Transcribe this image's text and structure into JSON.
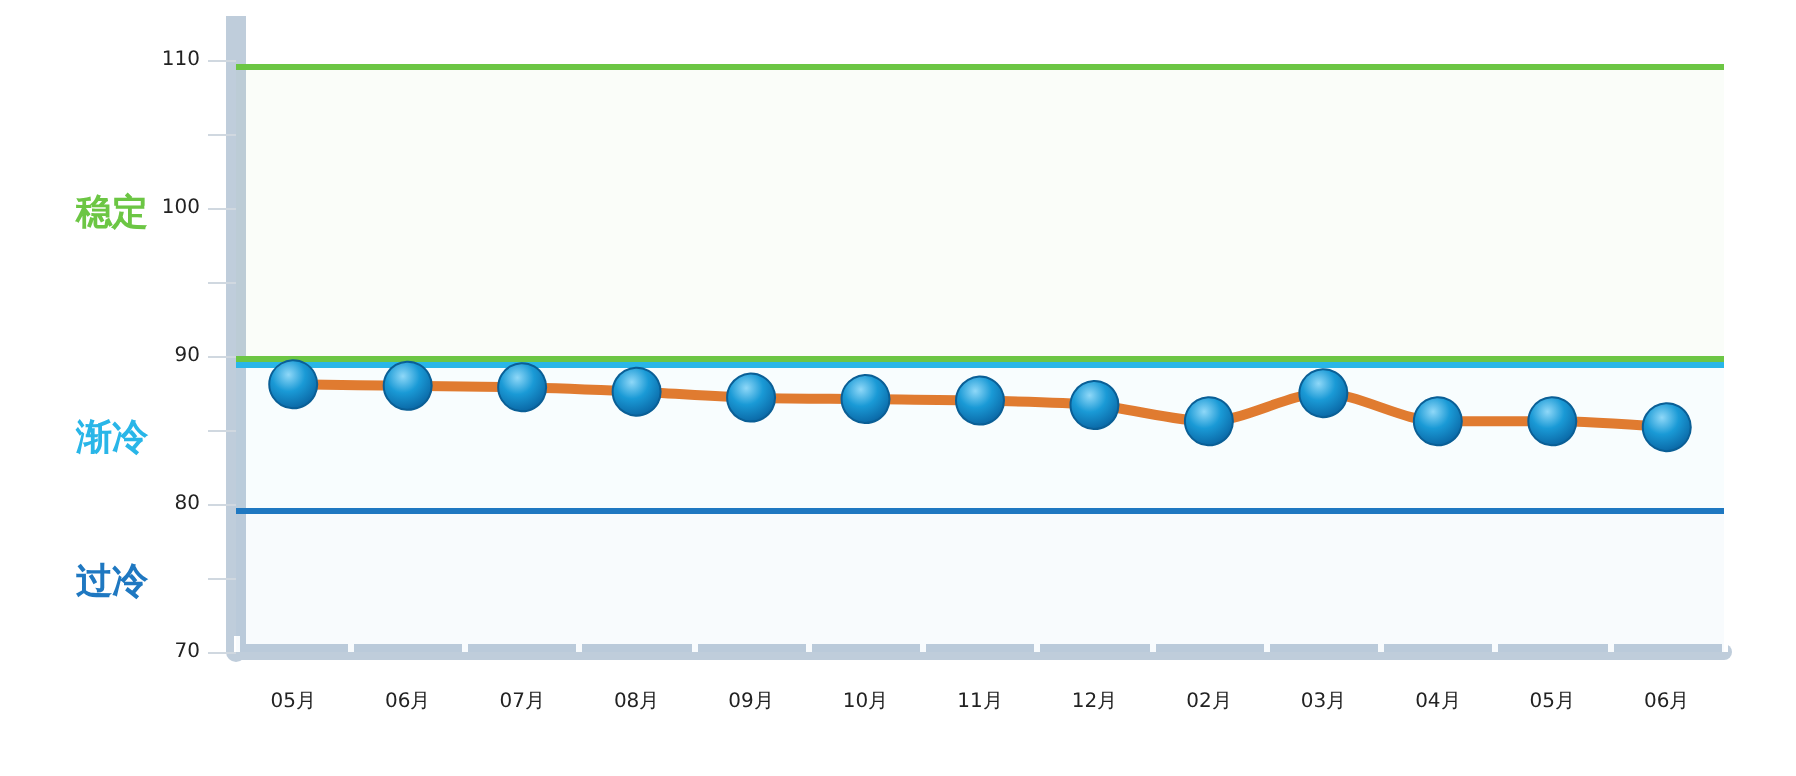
{
  "chart_data": {
    "type": "line",
    "categories": [
      "05月",
      "06月",
      "07月",
      "08月",
      "09月",
      "10月",
      "11月",
      "12月",
      "02月",
      "03月",
      "04月",
      "05月",
      "06月"
    ],
    "series": [
      {
        "color": "#e07b30",
        "values": [
          88.1,
          88.0,
          87.9,
          87.6,
          87.2,
          87.1,
          87.0,
          86.7,
          85.6,
          87.5,
          85.6,
          85.6,
          85.2
        ]
      }
    ],
    "ylim": [
      70,
      113
    ],
    "yticks": [
      70,
      {
        "value": 75,
        "label": null
      },
      80,
      {
        "value": 85,
        "label": null
      },
      90,
      {
        "value": 95,
        "label": null
      },
      100,
      {
        "value": 105,
        "label": null
      },
      110
    ],
    "bands": [
      {
        "axis": "y",
        "from": 89.8,
        "to": 109.6,
        "label": "稳定",
        "color": "#6cc644"
      },
      {
        "axis": "y",
        "from": 79.5,
        "to": 89.5,
        "label": "渐冷",
        "color": "#29b6e8"
      },
      {
        "axis": "y",
        "from": 70,
        "to": 79.5,
        "label": "过冷",
        "color": "#1f78c1"
      }
    ],
    "ref_lines": [
      {
        "axis": "y",
        "value": 109.6,
        "color": "#6cc644"
      },
      {
        "axis": "y",
        "value": 89.8,
        "color": "#6cc644"
      },
      {
        "axis": "y",
        "value": 89.45,
        "color": "#29b6e8"
      },
      {
        "axis": "y",
        "value": 79.5,
        "color": "#1f78c1"
      }
    ],
    "grid": false,
    "marker": "circle",
    "line_style": "solid"
  }
}
